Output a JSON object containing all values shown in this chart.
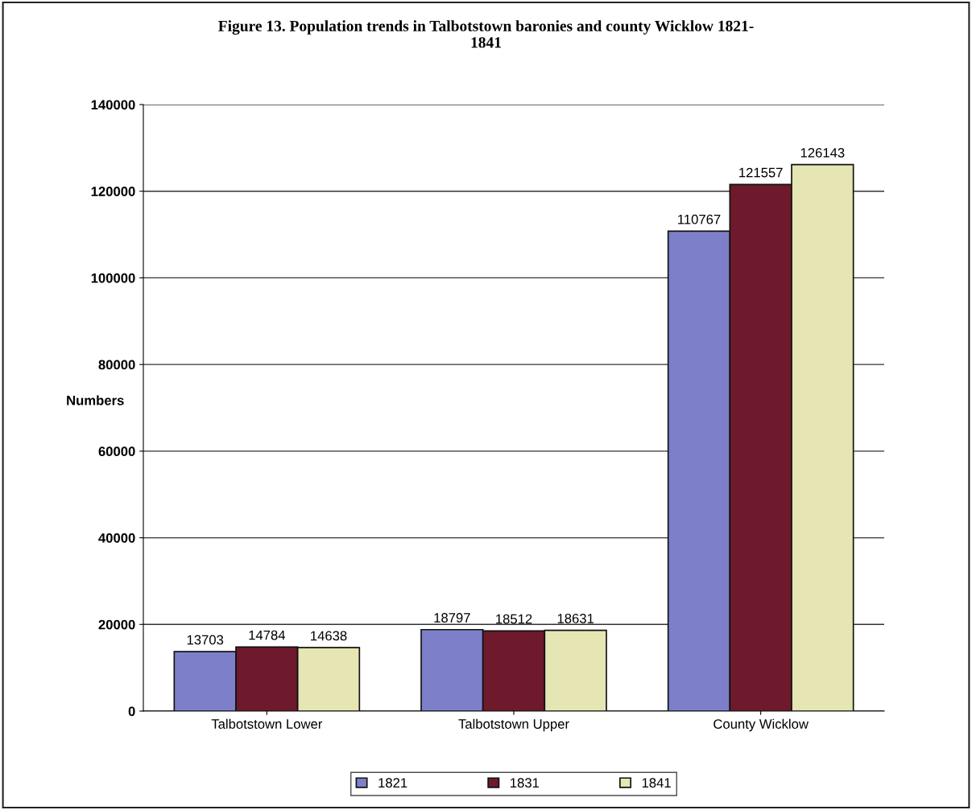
{
  "chart_data": {
    "type": "bar",
    "title": "Figure 13. Population trends in Talbotstown baronies and county Wicklow 1821-\n1841",
    "ylabel": "Numbers",
    "categories": [
      "Talbotstown Lower",
      "Talbotstown Upper",
      "County Wicklow"
    ],
    "series": [
      {
        "name": "1821",
        "color": "#7d80c8",
        "values": [
          13703,
          18797,
          110767
        ]
      },
      {
        "name": "1831",
        "color": "#6e1a2c",
        "values": [
          14784,
          18512,
          121557
        ]
      },
      {
        "name": "1841",
        "color": "#e6e6b4",
        "values": [
          14638,
          18631,
          126143
        ]
      }
    ],
    "ylim": [
      0,
      140000
    ],
    "yticks": [
      0,
      20000,
      40000,
      60000,
      80000,
      100000,
      120000,
      140000
    ],
    "grid": "y",
    "legend": "bottom",
    "data_labels": true
  }
}
